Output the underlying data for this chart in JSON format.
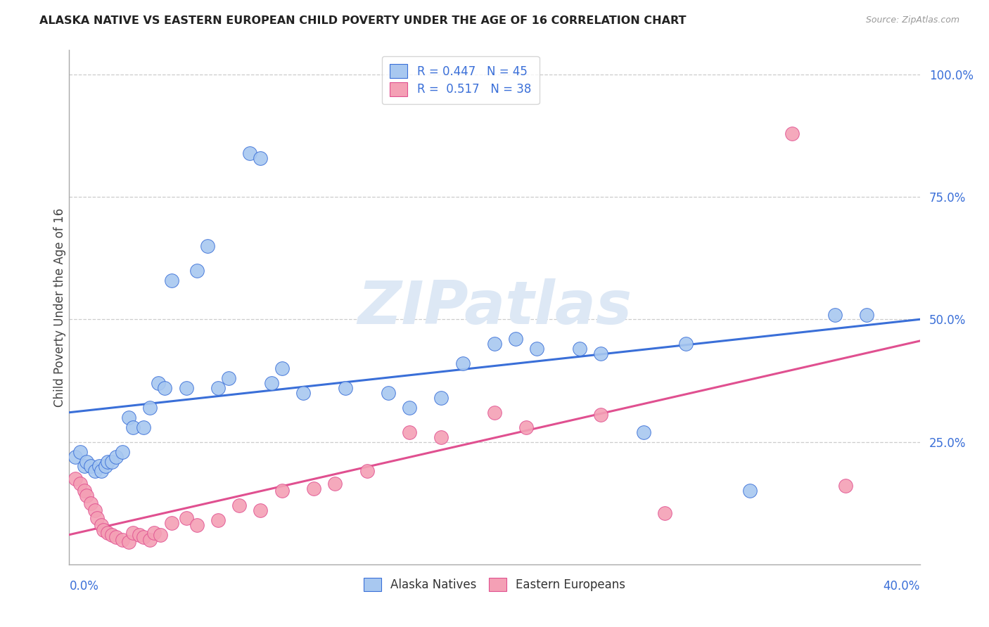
{
  "title": "ALASKA NATIVE VS EASTERN EUROPEAN CHILD POVERTY UNDER THE AGE OF 16 CORRELATION CHART",
  "source": "Source: ZipAtlas.com",
  "ylabel": "Child Poverty Under the Age of 16",
  "xlim": [
    0.0,
    0.4
  ],
  "ylim": [
    0.0,
    1.05
  ],
  "ytick_vals": [
    0.25,
    0.5,
    0.75,
    1.0
  ],
  "ytick_labels": [
    "25.0%",
    "50.0%",
    "75.0%",
    "100.0%"
  ],
  "legend_r1": "R = 0.447   N = 45",
  "legend_r2": "R =  0.517   N = 38",
  "alaska_color": "#a8c8f0",
  "eastern_color": "#f4a0b5",
  "trendline_alaska_color": "#3a6fd8",
  "trendline_eastern_color": "#e05090",
  "alaska_x": [
    0.003,
    0.005,
    0.007,
    0.008,
    0.01,
    0.012,
    0.014,
    0.015,
    0.017,
    0.018,
    0.02,
    0.022,
    0.025,
    0.028,
    0.03,
    0.035,
    0.038,
    0.042,
    0.045,
    0.048,
    0.055,
    0.06,
    0.065,
    0.07,
    0.075,
    0.085,
    0.09,
    0.095,
    0.1,
    0.11,
    0.13,
    0.15,
    0.16,
    0.175,
    0.185,
    0.2,
    0.21,
    0.22,
    0.24,
    0.25,
    0.27,
    0.29,
    0.32,
    0.36,
    0.375
  ],
  "alaska_y": [
    0.22,
    0.23,
    0.2,
    0.21,
    0.2,
    0.19,
    0.2,
    0.19,
    0.2,
    0.21,
    0.21,
    0.22,
    0.23,
    0.3,
    0.28,
    0.28,
    0.32,
    0.37,
    0.36,
    0.58,
    0.36,
    0.6,
    0.65,
    0.36,
    0.38,
    0.84,
    0.83,
    0.37,
    0.4,
    0.35,
    0.36,
    0.35,
    0.32,
    0.34,
    0.41,
    0.45,
    0.46,
    0.44,
    0.44,
    0.43,
    0.27,
    0.45,
    0.15,
    0.51,
    0.51
  ],
  "eastern_x": [
    0.003,
    0.005,
    0.007,
    0.008,
    0.01,
    0.012,
    0.013,
    0.015,
    0.016,
    0.018,
    0.02,
    0.022,
    0.025,
    0.028,
    0.03,
    0.033,
    0.035,
    0.038,
    0.04,
    0.043,
    0.048,
    0.055,
    0.06,
    0.07,
    0.08,
    0.09,
    0.1,
    0.115,
    0.125,
    0.14,
    0.16,
    0.175,
    0.2,
    0.215,
    0.25,
    0.28,
    0.34,
    0.365
  ],
  "eastern_y": [
    0.175,
    0.165,
    0.15,
    0.14,
    0.125,
    0.11,
    0.095,
    0.08,
    0.07,
    0.065,
    0.06,
    0.055,
    0.05,
    0.045,
    0.065,
    0.06,
    0.055,
    0.05,
    0.065,
    0.06,
    0.085,
    0.095,
    0.08,
    0.09,
    0.12,
    0.11,
    0.15,
    0.155,
    0.165,
    0.19,
    0.27,
    0.26,
    0.31,
    0.28,
    0.305,
    0.105,
    0.88,
    0.16
  ],
  "background_color": "#ffffff",
  "grid_color": "#cccccc",
  "watermark_color": "#dde8f5",
  "title_color": "#222222",
  "source_color": "#999999",
  "label_color": "#3a6fd8",
  "ylabel_color": "#444444"
}
